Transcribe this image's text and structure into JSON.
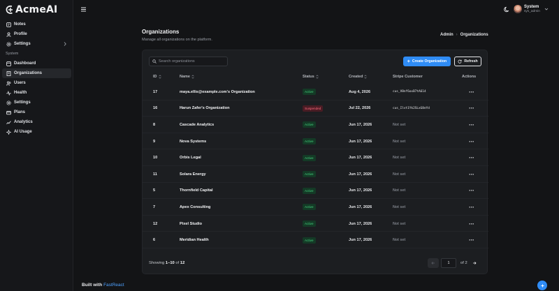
{
  "app": {
    "logo_text": "AcmeAI"
  },
  "sidebar": {
    "items_top": [
      {
        "label": "Notes",
        "icon": "notes-icon"
      },
      {
        "label": "Profile",
        "icon": "user-icon"
      },
      {
        "label": "Settings",
        "icon": "gear-icon",
        "has_submenu": true
      }
    ],
    "section_label": "System",
    "items_system": [
      {
        "label": "Dashboard",
        "icon": "dashboard-icon"
      },
      {
        "label": "Organizations",
        "icon": "building-icon",
        "active": true
      },
      {
        "label": "Users",
        "icon": "users-icon"
      },
      {
        "label": "Health",
        "icon": "pulse-icon"
      },
      {
        "label": "Settings",
        "icon": "gear-icon"
      },
      {
        "label": "Plans",
        "icon": "plans-icon"
      },
      {
        "label": "Analytics",
        "icon": "analytics-icon"
      },
      {
        "label": "AI Usage",
        "icon": "sparkle-icon"
      }
    ],
    "footer": {
      "prefix": "Built with",
      "brand": "FastReact"
    }
  },
  "header": {
    "user_name": "System",
    "user_role": "sys_admin"
  },
  "page": {
    "title": "Organizations",
    "subtitle": "Manage all organizations on the platform.",
    "breadcrumb": [
      "Admin",
      "Organizations"
    ]
  },
  "toolbar": {
    "search_placeholder": "Search organizations",
    "create_label": "Create Organization",
    "refresh_label": "Refresh"
  },
  "table": {
    "columns": [
      "ID",
      "Name",
      "Status",
      "Created",
      "Stripe Customer",
      "Actions"
    ],
    "rows": [
      {
        "id": "17",
        "name": "maya.ellis@example.com's Organization",
        "status": "Active",
        "created": "Aug 4, 2026",
        "stripe": "cus_V8nf6oxB7tA614",
        "stripe_set": true
      },
      {
        "id": "16",
        "name": "Harun Zafer's Organization",
        "status": "Suspended",
        "created": "Jul 22, 2026",
        "stripe": "cus_Ilvt1Yk2SLxG8eYd",
        "stripe_set": true
      },
      {
        "id": "8",
        "name": "Cascade Analytics",
        "status": "Active",
        "created": "Jun 17, 2026",
        "stripe": "Not set",
        "stripe_set": false
      },
      {
        "id": "9",
        "name": "Nova Systems",
        "status": "Active",
        "created": "Jun 17, 2026",
        "stripe": "Not set",
        "stripe_set": false
      },
      {
        "id": "10",
        "name": "Orbis Legal",
        "status": "Active",
        "created": "Jun 17, 2026",
        "stripe": "Not set",
        "stripe_set": false
      },
      {
        "id": "11",
        "name": "Solara Energy",
        "status": "Active",
        "created": "Jun 17, 2026",
        "stripe": "Not set",
        "stripe_set": false
      },
      {
        "id": "5",
        "name": "Thornfield Capital",
        "status": "Active",
        "created": "Jun 17, 2026",
        "stripe": "Not set",
        "stripe_set": false
      },
      {
        "id": "7",
        "name": "Apex Consulting",
        "status": "Active",
        "created": "Jun 17, 2026",
        "stripe": "Not set",
        "stripe_set": false
      },
      {
        "id": "12",
        "name": "Pixel Studio",
        "status": "Active",
        "created": "Jun 17, 2026",
        "stripe": "Not set",
        "stripe_set": false
      },
      {
        "id": "6",
        "name": "Meridian Health",
        "status": "Active",
        "created": "Jun 17, 2026",
        "stripe": "Not set",
        "stripe_set": false
      }
    ],
    "actions_glyph": "···"
  },
  "pagination": {
    "showing_prefix": "Showing",
    "range": "1–10",
    "of_word": "of",
    "total": "12",
    "page_value": "1",
    "page_total_label": "of 2"
  },
  "colors": {
    "accent": "#2f8cf5",
    "active_text": "#44d07d",
    "suspended_text": "#ff6a7e",
    "background": "#131416"
  }
}
